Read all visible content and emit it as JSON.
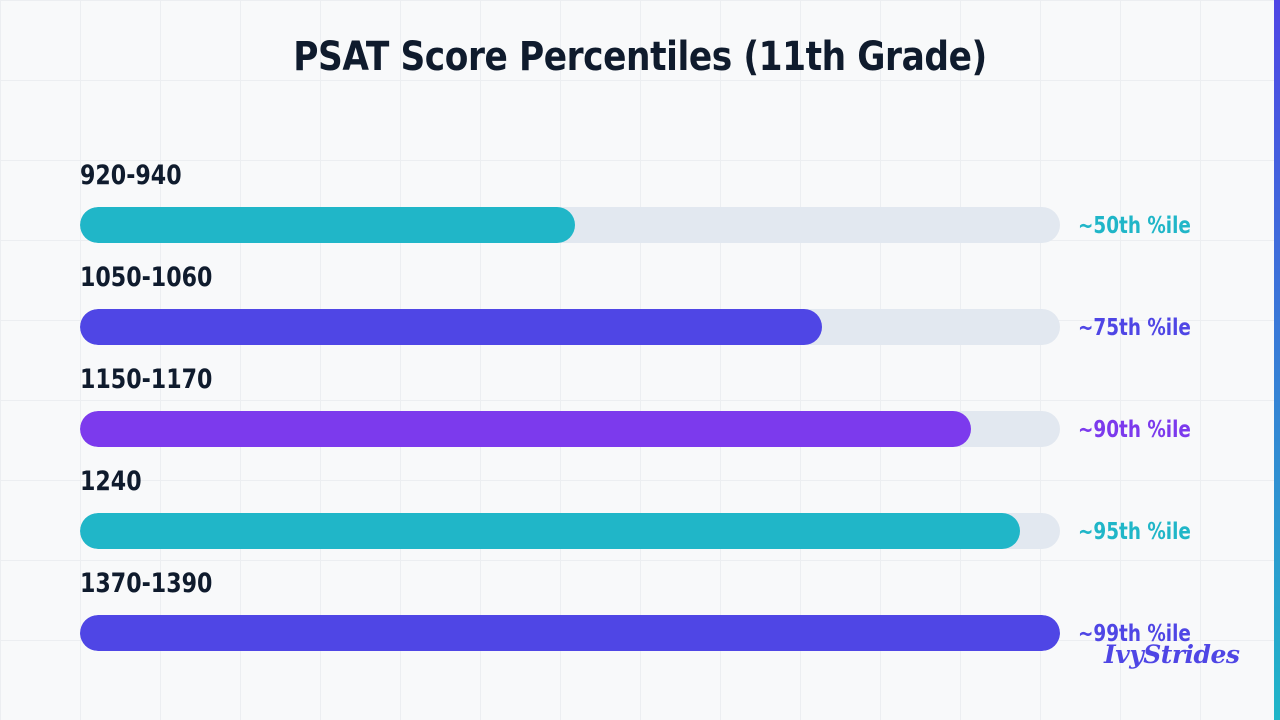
{
  "title": "PSAT Score Percentiles (11th Grade)",
  "logo_text": "IvyStrides",
  "colors": {
    "teal": "#20b6c8",
    "indigo": "#4f46e5",
    "violet": "#7c3aed",
    "track": "#e2e8f0",
    "text": "#0f1b2d",
    "accent_bar_top": "#4f46e5",
    "accent_bar_bottom": "#20b6c8"
  },
  "chart_data": {
    "type": "bar",
    "orientation": "horizontal",
    "title": "PSAT Score Percentiles (11th Grade)",
    "categories": [
      "920-940",
      "1050-1060",
      "1150-1170",
      "1240",
      "1370-1390"
    ],
    "values": [
      50,
      75,
      90,
      95,
      99
    ],
    "value_labels": [
      "~50th %ile",
      "~75th %ile",
      "~90th %ile",
      "~95th %ile",
      "~99th %ile"
    ],
    "bar_colors": [
      "#20b6c8",
      "#4f46e5",
      "#7c3aed",
      "#20b6c8",
      "#4f46e5"
    ],
    "xlim": [
      0,
      99
    ],
    "grid": true,
    "legend": "none"
  }
}
